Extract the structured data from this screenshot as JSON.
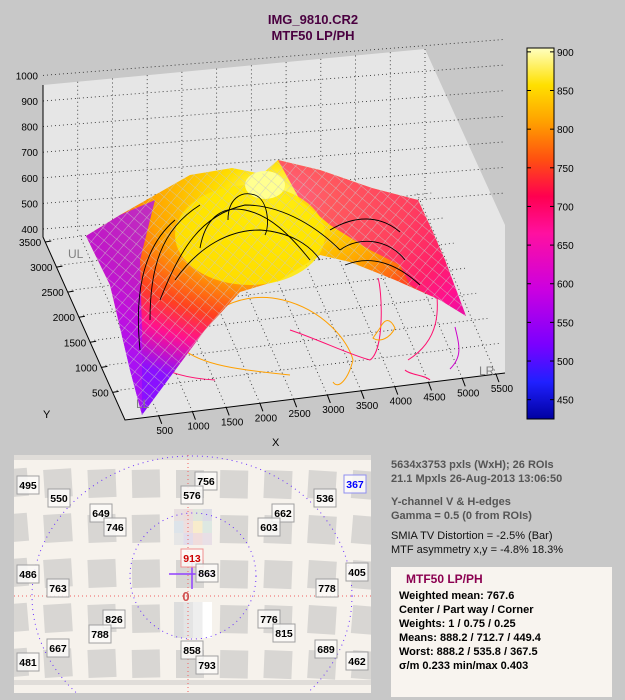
{
  "title": {
    "line1": "IMG_9810.CR2",
    "line2": "MTF50 LP/PH"
  },
  "chart_data": [
    {
      "type": "surface3d",
      "title": "IMG_9810.CR2 MTF50 LP/PH",
      "xlabel": "X",
      "ylabel": "Y",
      "zlabel": "",
      "x_ticks": [
        "500",
        "1000",
        "1500",
        "2000",
        "2500",
        "3000",
        "3500",
        "4000",
        "4500",
        "5000",
        "5500"
      ],
      "y_ticks": [
        "500",
        "1000",
        "1500",
        "2000",
        "2500",
        "3000",
        "3500"
      ],
      "z_ticks": [
        "400",
        "500",
        "600",
        "700",
        "800",
        "900",
        "1000"
      ],
      "xlim": [
        0,
        5634
      ],
      "ylim": [
        0,
        3753
      ],
      "zlim": [
        400,
        1000
      ],
      "corner_labels": [
        "UL",
        "LL",
        "LR"
      ],
      "colorbar": {
        "ticks": [
          "450",
          "500",
          "550",
          "600",
          "650",
          "700",
          "750",
          "800",
          "850",
          "900"
        ],
        "range": [
          425,
          905
        ]
      },
      "grid": true
    },
    {
      "type": "roi_map",
      "roi_values": [
        "495",
        "550",
        "756",
        "576",
        "367",
        "536",
        "649",
        "746",
        "662",
        "603",
        "913",
        "863",
        "486",
        "763",
        "405",
        "778",
        "826",
        "788",
        "776",
        "815",
        "667",
        "481",
        "858",
        "793",
        "689",
        "462"
      ],
      "max_value": "913",
      "min_value": "367",
      "center_marker": "0"
    }
  ],
  "info": {
    "line1": "5634x3753 pxls (WxH);   26 ROIs",
    "line2": "21.1 Mpxls   26-Aug-2013 13:06:50",
    "line3": "Y-channel   V & H-edges",
    "line4": "Gamma = 0.5  (0 from ROIs)",
    "line5": "SMIA TV Distortion = -2.5%  (Bar)",
    "line6": "MTF asymmetry x,y = -4.8%  18.3%"
  },
  "summary": {
    "title": "MTF50 LP/PH",
    "weighted_mean": "Weighted mean: 767.6",
    "zones": "Center / Part way / Corner",
    "weights": "Weights: 1 / 0.75 / 0.25",
    "means": "Means:    888.2 / 712.7 / 449.4",
    "worst": "Worst:     888.2 / 535.8 / 367.5",
    "ratios": "σ/m  0.233   min/max  0.403"
  },
  "colors": {
    "title": "#4a0040",
    "max_label": "#cc0000",
    "min_label": "#0000ff",
    "summary_title": "#8b0050"
  }
}
